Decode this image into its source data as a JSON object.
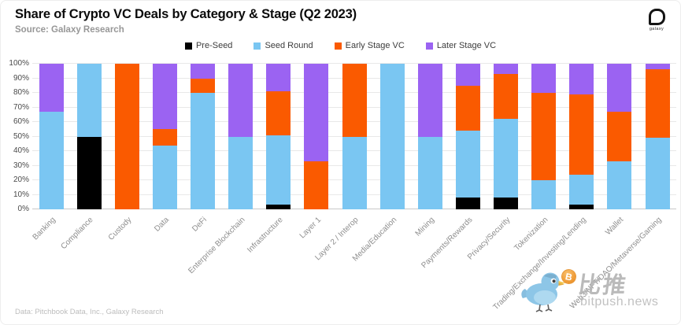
{
  "header": {
    "title": "Share of Crypto VC Deals by Category & Stage (Q2 2023)",
    "subtitle": "Source: Galaxy Research",
    "logo_text": "galaxy"
  },
  "footer": {
    "source": "Data: Pitchbook Data, Inc., Galaxy Research"
  },
  "watermark": {
    "cn": "比推",
    "domain": "bitpush.news",
    "coin_symbol": "B"
  },
  "chart_data": {
    "type": "bar",
    "stacked": true,
    "title": "Share of Crypto VC Deals by Category & Stage (Q2 2023)",
    "ylim": [
      0,
      100
    ],
    "grid": true,
    "legend_position": "top-center",
    "ytick_labels": [
      "0%",
      "10%",
      "20%",
      "30%",
      "40%",
      "50%",
      "60%",
      "70%",
      "80%",
      "90%",
      "100%"
    ],
    "categories": [
      "Banking",
      "Compliance",
      "Custody",
      "Data",
      "DeFi",
      "Enterprise Blockchain",
      "Infrastructure",
      "Layer 1",
      "Layer 2 / Interop",
      "Media/Education",
      "Mining",
      "Payments/Rewards",
      "Privacy/Security",
      "Tokenization",
      "Trading/Exchange/Investing/Lending",
      "Wallet",
      "Web3/NFT/DAO/Metaverse/Gaming"
    ],
    "series": [
      {
        "name": "Pre-Seed",
        "color": "#000000",
        "values": [
          0,
          50,
          0,
          0,
          0,
          0,
          3,
          0,
          0,
          0,
          0,
          8,
          8,
          0,
          3,
          0,
          0
        ]
      },
      {
        "name": "Seed Round",
        "color": "#7AC6F2",
        "values": [
          67,
          50,
          0,
          44,
          80,
          50,
          48,
          0,
          50,
          100,
          50,
          46,
          54,
          20,
          21,
          33,
          49
        ]
      },
      {
        "name": "Early Stage VC",
        "color": "#FA5A00",
        "values": [
          0,
          0,
          100,
          11,
          10,
          0,
          30,
          33,
          50,
          0,
          0,
          31,
          31,
          60,
          55,
          34,
          47
        ]
      },
      {
        "name": "Later Stage VC",
        "color": "#9B63F2",
        "values": [
          33,
          0,
          0,
          45,
          10,
          50,
          19,
          67,
          0,
          0,
          50,
          15,
          7,
          20,
          21,
          33,
          4
        ]
      }
    ]
  }
}
